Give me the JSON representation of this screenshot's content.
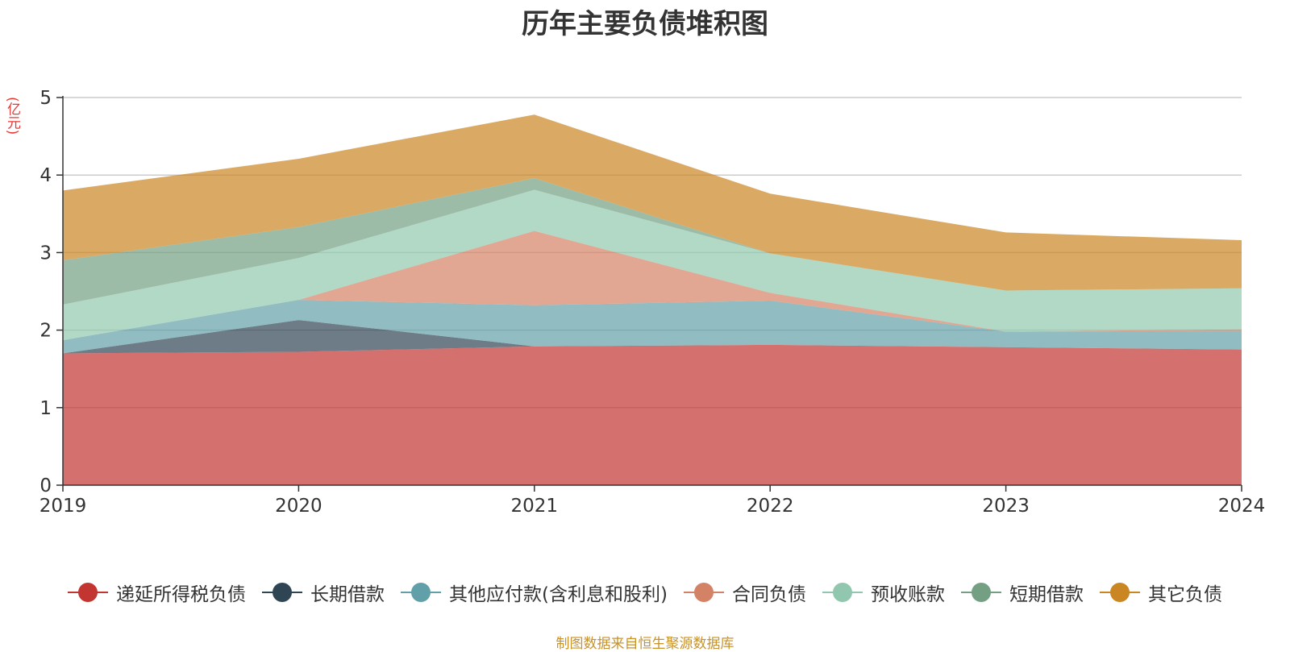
{
  "chart_data": {
    "type": "area",
    "stacked": true,
    "title": "历年主要负债堆积图",
    "unit_label": "(亿元)",
    "source_note": "制图数据来自恒生聚源数据库",
    "x": [
      "2019",
      "2020",
      "2021",
      "2022",
      "2023",
      "2024"
    ],
    "ylim": [
      0,
      5
    ],
    "yticks": [
      0,
      1,
      2,
      3,
      4,
      5
    ],
    "grid": true,
    "legend_position": "bottom",
    "series": [
      {
        "name": "递延所得税负债",
        "color": "#c23531",
        "values": [
          1.7,
          1.72,
          1.79,
          1.81,
          1.78,
          1.75
        ]
      },
      {
        "name": "长期借款",
        "color": "#2f4554",
        "values": [
          0.0,
          0.41,
          0.0,
          0.0,
          0.0,
          0.0
        ]
      },
      {
        "name": "其他应付款(含利息和股利)",
        "color": "#61a0a8",
        "values": [
          0.17,
          0.26,
          0.53,
          0.57,
          0.2,
          0.24
        ]
      },
      {
        "name": "合同负债",
        "color": "#d48265",
        "values": [
          0.0,
          0.0,
          0.96,
          0.1,
          0.0,
          0.02
        ]
      },
      {
        "name": "预收账款",
        "color": "#91c7ae",
        "values": [
          0.46,
          0.54,
          0.53,
          0.51,
          0.53,
          0.53
        ]
      },
      {
        "name": "短期借款",
        "color": "#749f83",
        "values": [
          0.57,
          0.4,
          0.15,
          0.0,
          0.0,
          0.0
        ]
      },
      {
        "name": "其它负债",
        "color": "#ca8622",
        "values": [
          0.9,
          0.88,
          0.82,
          0.77,
          0.75,
          0.62
        ]
      }
    ]
  }
}
